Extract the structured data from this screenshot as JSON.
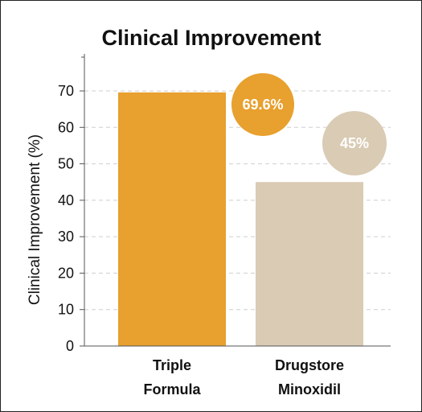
{
  "chart_data": {
    "type": "bar",
    "title": "Clinical Improvement",
    "xlabel": "",
    "ylabel": "Clinical Improvement (%)",
    "ylim": [
      0,
      70
    ],
    "yticks": [
      0,
      10,
      20,
      30,
      40,
      50,
      60,
      70
    ],
    "grid": true,
    "categories": [
      [
        "Triple",
        "Formula"
      ],
      [
        "Drugstore",
        "Minoxidil"
      ]
    ],
    "values": [
      69.6,
      45
    ],
    "data_labels": [
      "69.6%",
      "45%"
    ],
    "colors": {
      "bar_1": "#E8A02E",
      "bar_2": "#D9CBB4",
      "badge_1": "#E8A02E",
      "badge_2": "#D9CBB4",
      "grid": "#cfcfcf",
      "axis": "#555555"
    }
  }
}
